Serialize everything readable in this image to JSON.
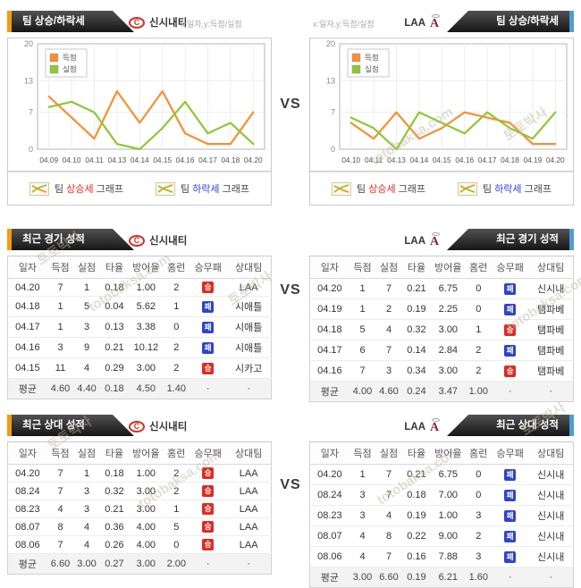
{
  "vs_label": "VS",
  "watermark": {
    "text1": "토토박사",
    "text2": "totobaksa.com"
  },
  "teams": {
    "left": {
      "name": "신시내티",
      "logo_letter": "C"
    },
    "right": {
      "name": "LAA",
      "logo_letter": "A"
    }
  },
  "chart_section": {
    "banner": "팀 상승/하락세",
    "axis_hint": "x:일자,y:득점/실점",
    "legend": [
      "득점",
      "실점"
    ]
  },
  "legend_footer": {
    "rise": {
      "prefix": "팀 ",
      "highlight": "상승세",
      "suffix": " 그래프"
    },
    "fall": {
      "prefix": "팀 ",
      "highlight": "하락세",
      "suffix": " 그래프"
    }
  },
  "chart_data": [
    {
      "type": "line",
      "title": "신시내티 팀 상승/하락세",
      "xlabel": "일자",
      "ylabel": "득점/실점",
      "categories": [
        "04.09",
        "04.10",
        "04.11",
        "04.13",
        "04.14",
        "04.15",
        "04.16",
        "04.17",
        "04.18",
        "04.20"
      ],
      "series": [
        {
          "name": "득점",
          "color": "#fc8d30",
          "values": [
            10,
            6,
            2,
            11,
            5,
            11,
            3,
            1,
            1,
            7
          ]
        },
        {
          "name": "실점",
          "color": "#8cc832",
          "values": [
            8,
            9,
            7,
            1,
            0,
            4,
            9,
            3,
            5,
            1
          ]
        }
      ],
      "ylim": [
        0,
        20
      ],
      "yticks": [
        20,
        13,
        7,
        0
      ],
      "grid": true,
      "legend_position": "top-left"
    },
    {
      "type": "line",
      "title": "LAA 팀 상승/하락세",
      "xlabel": "일자",
      "ylabel": "득점/실점",
      "categories": [
        "04.10",
        "04.11",
        "04.13",
        "04.14",
        "04.15",
        "04.16",
        "04.17",
        "04.18",
        "04.19",
        "04.20"
      ],
      "series": [
        {
          "name": "득점",
          "color": "#fc8d30",
          "values": [
            5,
            2,
            7,
            2,
            4,
            7,
            6,
            5,
            1,
            1
          ]
        },
        {
          "name": "실점",
          "color": "#8cc832",
          "values": [
            6,
            4,
            0,
            7,
            5,
            3,
            7,
            4,
            2,
            7
          ]
        }
      ],
      "ylim": [
        0,
        20
      ],
      "yticks": [
        20,
        13,
        7,
        0
      ],
      "grid": true,
      "legend_position": "top-left"
    }
  ],
  "recent_games": {
    "banner": "최근 경기 성적",
    "columns": [
      "일자",
      "득점",
      "실점",
      "타율",
      "방어율",
      "홈런",
      "승무패",
      "상대팀"
    ],
    "left_rows": [
      [
        "04.20",
        "7",
        "1",
        "0.18",
        "1.00",
        "2",
        "승",
        "LAA"
      ],
      [
        "04.18",
        "1",
        "5",
        "0.04",
        "5.62",
        "1",
        "패",
        "시애틀"
      ],
      [
        "04.17",
        "1",
        "3",
        "0.13",
        "3.38",
        "0",
        "패",
        "시애틀"
      ],
      [
        "04.16",
        "3",
        "9",
        "0.21",
        "10.12",
        "2",
        "패",
        "시애틀"
      ],
      [
        "04.15",
        "11",
        "4",
        "0.29",
        "3.00",
        "2",
        "승",
        "시카고"
      ],
      [
        "평균",
        "4.60",
        "4.40",
        "0.18",
        "4.50",
        "1.40",
        "·",
        "·"
      ]
    ],
    "right_rows": [
      [
        "04.20",
        "1",
        "7",
        "0.21",
        "6.75",
        "0",
        "패",
        "신시내"
      ],
      [
        "04.19",
        "1",
        "2",
        "0.19",
        "2.25",
        "0",
        "패",
        "탬파베"
      ],
      [
        "04.18",
        "5",
        "4",
        "0.32",
        "3.00",
        "1",
        "승",
        "탬파베"
      ],
      [
        "04.17",
        "6",
        "7",
        "0.14",
        "2.84",
        "2",
        "패",
        "탬파베"
      ],
      [
        "04.16",
        "7",
        "3",
        "0.34",
        "3.00",
        "2",
        "승",
        "탬파베"
      ],
      [
        "평균",
        "4.00",
        "4.60",
        "0.24",
        "3.47",
        "1.00",
        "·",
        "·"
      ]
    ]
  },
  "recent_h2h": {
    "banner": "최근 상대 성적",
    "columns": [
      "일자",
      "득점",
      "실점",
      "타율",
      "방어율",
      "홈런",
      "승무패",
      "상대팀"
    ],
    "left_rows": [
      [
        "04.20",
        "7",
        "1",
        "0.18",
        "1.00",
        "2",
        "승",
        "LAA"
      ],
      [
        "08.24",
        "7",
        "3",
        "0.32",
        "3.00",
        "2",
        "승",
        "LAA"
      ],
      [
        "08.23",
        "4",
        "3",
        "0.21",
        "3.00",
        "1",
        "승",
        "LAA"
      ],
      [
        "08.07",
        "8",
        "4",
        "0.36",
        "4.00",
        "5",
        "승",
        "LAA"
      ],
      [
        "08.06",
        "7",
        "4",
        "0.26",
        "4.00",
        "0",
        "승",
        "LAA"
      ],
      [
        "평균",
        "6.60",
        "3.00",
        "0.27",
        "3.00",
        "2.00",
        "·",
        "·"
      ]
    ],
    "right_rows": [
      [
        "04.20",
        "1",
        "7",
        "0.21",
        "6.75",
        "0",
        "패",
        "신시내"
      ],
      [
        "08.24",
        "3",
        "7",
        "0.18",
        "7.00",
        "0",
        "패",
        "신시내"
      ],
      [
        "08.23",
        "3",
        "4",
        "0.19",
        "1.00",
        "3",
        "패",
        "신시내"
      ],
      [
        "08.07",
        "4",
        "8",
        "0.22",
        "9.00",
        "2",
        "패",
        "신시내"
      ],
      [
        "08.06",
        "4",
        "7",
        "0.16",
        "7.88",
        "3",
        "패",
        "신시내"
      ],
      [
        "평균",
        "3.00",
        "6.60",
        "0.19",
        "6.21",
        "1.60",
        "·",
        "·"
      ]
    ]
  },
  "colors": {
    "score_line": "#fc8d30",
    "concede_line": "#8cc832",
    "win_badge": "#df2b22",
    "loss_badge": "#2f43cf",
    "accent_orange": "#f79a10",
    "accent_blue": "#4f9cd8"
  }
}
